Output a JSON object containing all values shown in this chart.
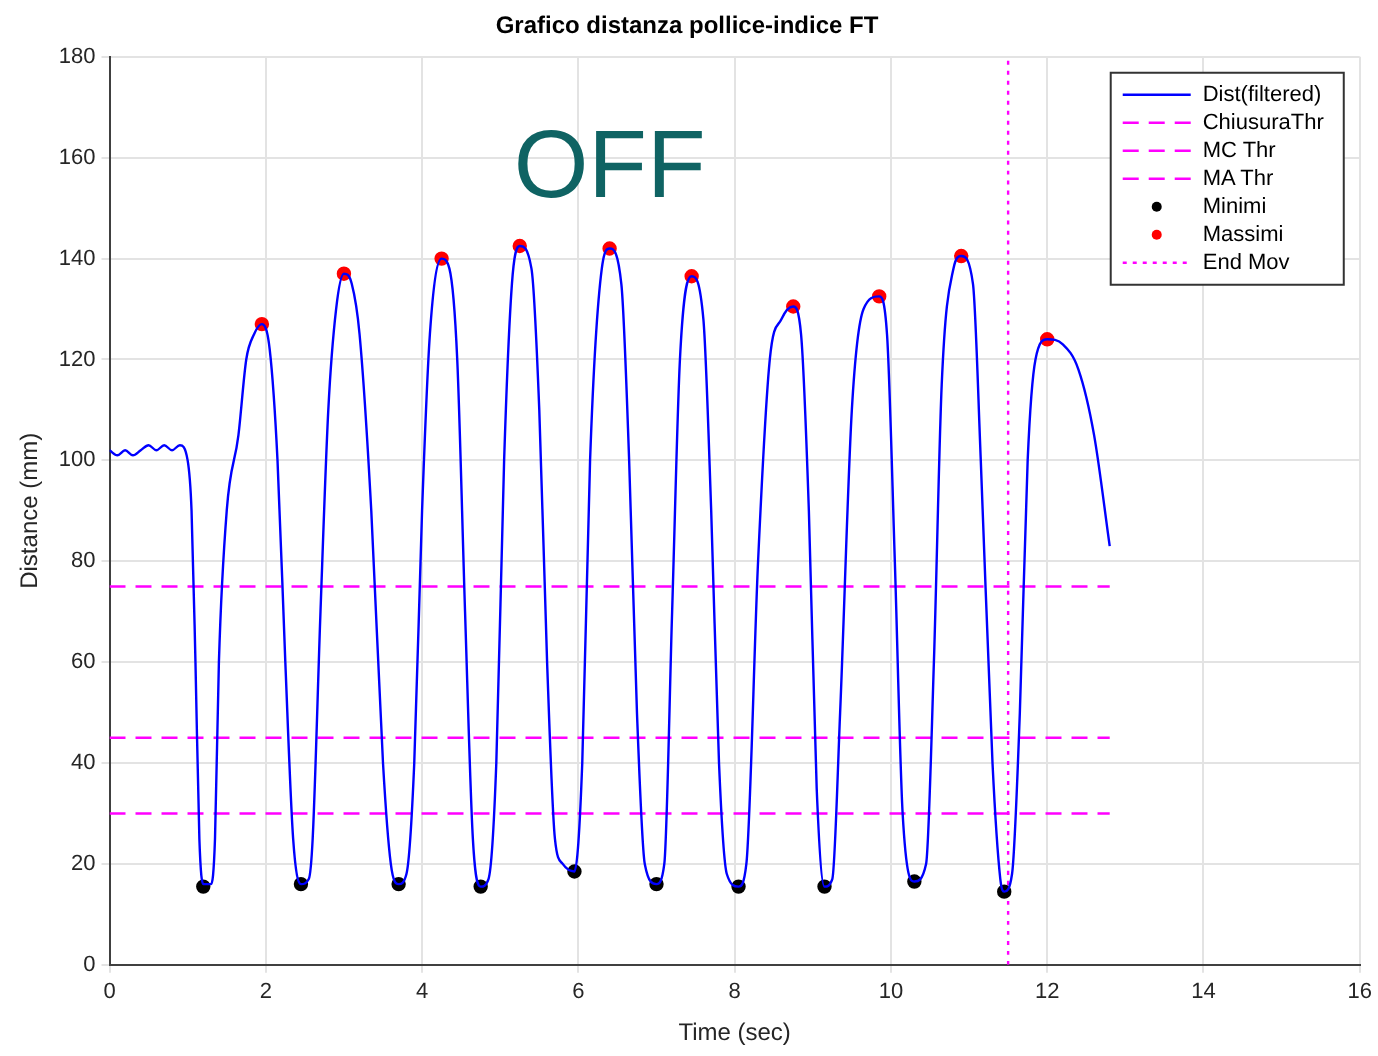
{
  "chart_data": {
    "type": "line",
    "title": "Grafico distanza pollice-indice FT",
    "xlabel": "Time (sec)",
    "ylabel": "Distance (mm)",
    "xlim": [
      0,
      16
    ],
    "xticks": [
      0,
      2,
      4,
      6,
      8,
      10,
      12,
      14,
      16
    ],
    "ylim": [
      0,
      180
    ],
    "yticks": [
      0,
      20,
      40,
      60,
      80,
      100,
      120,
      140,
      160,
      180
    ],
    "grid": true,
    "legend": "top right",
    "annotations": [
      "OFF"
    ],
    "series": [
      {
        "name": "Dist(filtered)",
        "color": "#0000ff",
        "marker": "none",
        "line_style": "solid",
        "x": [
          0,
          0.1,
          0.2,
          0.3,
          0.4,
          0.5,
          0.6,
          0.7,
          0.8,
          0.9,
          1.0,
          1.05,
          1.1,
          1.15,
          1.2,
          1.3,
          1.35,
          1.4,
          1.5,
          1.65,
          1.75,
          1.85,
          1.95,
          2.05,
          2.15,
          2.25,
          2.35,
          2.45,
          2.55,
          2.6,
          2.7,
          2.8,
          2.9,
          3.0,
          3.1,
          3.2,
          3.35,
          3.5,
          3.6,
          3.7,
          3.8,
          3.9,
          4.0,
          4.1,
          4.25,
          4.35,
          4.45,
          4.55,
          4.65,
          4.75,
          4.85,
          4.95,
          5.05,
          5.15,
          5.25,
          5.4,
          5.5,
          5.6,
          5.7,
          5.8,
          5.95,
          6.05,
          6.15,
          6.3,
          6.4,
          6.55,
          6.65,
          6.75,
          6.85,
          7.0,
          7.1,
          7.2,
          7.3,
          7.45,
          7.6,
          7.7,
          7.8,
          7.9,
          8.05,
          8.15,
          8.3,
          8.45,
          8.6,
          8.75,
          8.85,
          8.95,
          9.05,
          9.15,
          9.25,
          9.35,
          9.5,
          9.65,
          9.85,
          9.95,
          10.05,
          10.15,
          10.3,
          10.45,
          10.55,
          10.65,
          10.8,
          10.9,
          11.05,
          11.15,
          11.3,
          11.4,
          11.45,
          11.55,
          11.65,
          11.75,
          11.85,
          12.0,
          12.2,
          12.4,
          12.6,
          12.8
        ],
        "values": [
          102,
          101,
          102,
          101,
          102,
          103,
          102,
          103,
          102,
          103,
          100,
          90,
          60,
          25,
          16,
          16,
          25,
          60,
          90,
          105,
          120,
          125,
          127,
          122,
          100,
          60,
          25,
          16,
          17,
          25,
          70,
          110,
          130,
          137,
          135,
          125,
          90,
          40,
          20,
          16,
          18,
          40,
          90,
          125,
          140,
          138,
          120,
          70,
          25,
          15.5,
          17,
          40,
          100,
          135,
          142.5,
          138,
          110,
          60,
          25,
          20,
          18.5,
          40,
          100,
          138,
          142,
          135,
          100,
          50,
          20,
          16,
          20,
          70,
          120,
          136.5,
          128,
          90,
          40,
          18,
          15.5,
          20,
          80,
          120,
          128,
          130.5,
          125,
          90,
          35,
          15.5,
          17,
          50,
          110,
          130,
          132.5,
          125,
          80,
          30,
          16.5,
          20,
          60,
          115,
          138,
          140.5,
          135,
          100,
          40,
          17,
          14.5,
          18,
          50,
          100,
          120,
          124,
          123,
          118,
          105,
          83
        ]
      },
      {
        "name": "ChiusuraThr",
        "type": "line",
        "color": "#ff00ff",
        "marker": "none",
        "line_style": "dashed",
        "x": [
          0,
          12.8
        ],
        "values": [
          75,
          75
        ]
      },
      {
        "name": "MC Thr",
        "type": "line",
        "color": "#ff00ff",
        "marker": "none",
        "line_style": "dashed",
        "x": [
          0,
          12.8
        ],
        "values": [
          45,
          45
        ]
      },
      {
        "name": "MA Thr",
        "type": "line",
        "color": "#ff00ff",
        "marker": "none",
        "line_style": "dashed",
        "x": [
          0,
          12.8
        ],
        "values": [
          30,
          30
        ]
      },
      {
        "name": "Minimi",
        "type": "scatter",
        "color": "#000000",
        "marker": "circle",
        "x": [
          1.2,
          2.45,
          3.7,
          4.75,
          5.95,
          7.0,
          8.05,
          9.15,
          10.3,
          11.45
        ],
        "values": [
          15.5,
          16,
          16,
          15.5,
          18.5,
          16,
          15.5,
          15.5,
          16.5,
          14.5
        ]
      },
      {
        "name": "Massimi",
        "type": "scatter",
        "color": "#ff0000",
        "marker": "circle",
        "x": [
          1.95,
          3.0,
          4.25,
          5.25,
          6.4,
          7.45,
          8.75,
          9.85,
          10.9,
          12.0
        ],
        "values": [
          127,
          137,
          140,
          142.5,
          142,
          136.5,
          130.5,
          132.5,
          140.5,
          124
        ]
      },
      {
        "name": "End Mov",
        "type": "line",
        "color": "#ff00ff",
        "marker": "none",
        "line_style": "dotted",
        "x": [
          11.5,
          11.5
        ],
        "values": [
          0,
          180
        ]
      }
    ]
  }
}
